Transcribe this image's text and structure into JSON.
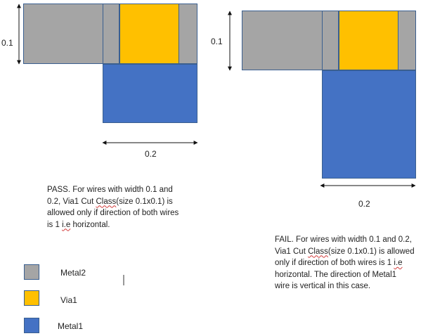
{
  "colors": {
    "metal2": "#a5a5a5",
    "via1": "#ffc000",
    "metal1": "#4472c4",
    "border": "#3a5f8f"
  },
  "left_figure": {
    "height_label": "0.1",
    "width_label": "0.2",
    "description_parts": [
      "PASS. For wires with width 0.1 and\n0.2, Via1 Cut ",
      "Class",
      "(size 0.1x0.1) is\nallowed only if direction of both wires\nis 1 ",
      "i.e",
      " horizontal."
    ]
  },
  "right_figure": {
    "height_label": "0.1",
    "width_label": "0.2",
    "description_parts": [
      "FAIL. For wires with width 0.1 and 0.2,\nVia1 Cut ",
      "Class",
      "(size 0.1x0.1) is allowed\nonly if direction of both wires is 1 ",
      "i.e",
      "\nhorizontal. The direction of Metal1\nwire is vertical in this case."
    ]
  },
  "legend": [
    {
      "label": "Metal2",
      "color": "#a5a5a5"
    },
    {
      "label": "Via1",
      "color": "#ffc000"
    },
    {
      "label": "Metal1",
      "color": "#4472c4"
    }
  ]
}
